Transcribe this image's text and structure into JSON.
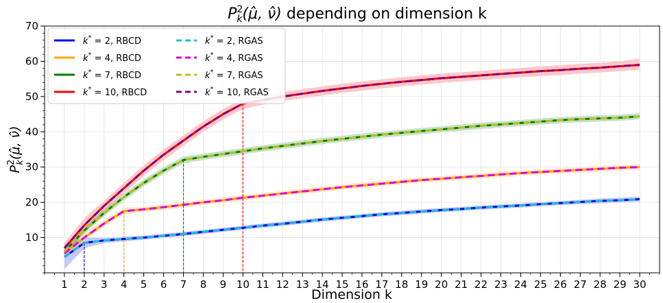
{
  "chart_data": {
    "type": "line",
    "title": "P_k^2(μ̂, ν̂) depending on dimension k",
    "title_parts": {
      "main": "P",
      "sub": "k",
      "sup": "2",
      "args": "(μ̂, ν̂)",
      "rest": " depending on dimension k"
    },
    "xlabel": "Dimension k",
    "ylabel": "P_k^2(μ̂, ν̂)",
    "ylabel_parts": {
      "main": "P",
      "sub": "k",
      "sup": "2",
      "args": "(μ̂, ν̂)"
    },
    "xlim": [
      0,
      31
    ],
    "ylim": [
      0,
      70
    ],
    "x_ticks": [
      1,
      2,
      3,
      4,
      5,
      6,
      7,
      8,
      9,
      10,
      11,
      12,
      13,
      14,
      15,
      16,
      17,
      18,
      19,
      20,
      21,
      22,
      23,
      24,
      25,
      26,
      27,
      28,
      29,
      30
    ],
    "y_ticks": [
      10,
      20,
      30,
      40,
      50,
      60,
      70
    ],
    "grid": true,
    "legend_position": "top-left",
    "x": [
      1,
      2,
      3,
      4,
      5,
      6,
      7,
      8,
      9,
      10,
      11,
      12,
      13,
      14,
      15,
      16,
      17,
      18,
      19,
      20,
      21,
      22,
      23,
      24,
      25,
      26,
      27,
      28,
      29,
      30
    ],
    "series": [
      {
        "name": "k* = 2, RBCD",
        "k_star": "2",
        "method": "RBCD",
        "color": "#0000ee",
        "dash": false,
        "values": [
          4.5,
          8.5,
          9.2,
          9.6,
          10.0,
          10.5,
          11.0,
          11.6,
          12.2,
          12.8,
          13.4,
          13.9,
          14.5,
          15.1,
          15.6,
          16.1,
          16.6,
          17.0,
          17.4,
          17.8,
          18.1,
          18.5,
          18.8,
          19.1,
          19.5,
          19.8,
          20.1,
          20.4,
          20.6,
          20.9
        ],
        "band": [
          [
            1.0,
            8.0
          ],
          [
            7.0,
            10.0
          ],
          [
            8.4,
            10.0
          ],
          [
            8.9,
            10.3
          ],
          [
            9.4,
            10.6
          ],
          [
            9.9,
            11.1
          ],
          [
            10.4,
            11.6
          ],
          [
            11.0,
            12.2
          ],
          [
            11.6,
            12.8
          ],
          [
            12.2,
            13.4
          ],
          [
            12.8,
            14.0
          ],
          [
            13.3,
            14.5
          ],
          [
            13.9,
            15.1
          ],
          [
            14.5,
            15.7
          ],
          [
            15.0,
            16.2
          ],
          [
            15.5,
            16.7
          ],
          [
            16.0,
            17.2
          ],
          [
            16.4,
            17.6
          ],
          [
            16.8,
            18.0
          ],
          [
            17.2,
            18.4
          ],
          [
            17.5,
            18.7
          ],
          [
            17.9,
            19.1
          ],
          [
            18.2,
            19.4
          ],
          [
            18.5,
            19.7
          ],
          [
            18.9,
            20.1
          ],
          [
            19.2,
            20.4
          ],
          [
            19.5,
            20.7
          ],
          [
            19.7,
            21.1
          ],
          [
            19.9,
            21.3
          ],
          [
            20.2,
            21.6
          ]
        ]
      },
      {
        "name": "k* = 4, RBCD",
        "k_star": "4",
        "method": "RBCD",
        "color": "#ffa500",
        "dash": false,
        "values": [
          5.5,
          10.0,
          14.0,
          17.5,
          18.0,
          18.6,
          19.3,
          20.0,
          20.6,
          21.3,
          21.9,
          22.5,
          23.1,
          23.7,
          24.3,
          24.8,
          25.3,
          25.8,
          26.3,
          26.7,
          27.1,
          27.5,
          27.9,
          28.3,
          28.6,
          28.9,
          29.2,
          29.5,
          29.8,
          30.0
        ],
        "band": [
          [
            4.5,
            6.5
          ],
          [
            9.0,
            11.2
          ],
          [
            13.0,
            15.0
          ],
          [
            16.5,
            18.5
          ],
          [
            17.2,
            18.8
          ],
          [
            17.8,
            19.4
          ],
          [
            18.5,
            20.1
          ],
          [
            19.2,
            20.8
          ],
          [
            19.8,
            21.4
          ],
          [
            20.5,
            22.1
          ],
          [
            21.1,
            22.7
          ],
          [
            21.7,
            23.3
          ],
          [
            22.3,
            23.9
          ],
          [
            22.9,
            24.5
          ],
          [
            23.5,
            25.1
          ],
          [
            24.0,
            25.6
          ],
          [
            24.5,
            26.1
          ],
          [
            25.0,
            26.6
          ],
          [
            25.5,
            27.1
          ],
          [
            25.9,
            27.5
          ],
          [
            26.3,
            27.9
          ],
          [
            26.7,
            28.3
          ],
          [
            27.1,
            28.7
          ],
          [
            27.5,
            29.1
          ],
          [
            27.8,
            29.4
          ],
          [
            28.1,
            29.7
          ],
          [
            28.4,
            30.0
          ],
          [
            28.7,
            30.3
          ],
          [
            29.0,
            30.6
          ],
          [
            29.2,
            30.8
          ]
        ]
      },
      {
        "name": "k* = 7, RBCD",
        "k_star": "7",
        "method": "RBCD",
        "color": "#008000",
        "dash": false,
        "values": [
          6.0,
          12.0,
          17.0,
          21.5,
          25.5,
          29.0,
          32.0,
          32.9,
          33.7,
          34.5,
          35.3,
          36.0,
          36.7,
          37.4,
          38.0,
          38.6,
          39.2,
          39.7,
          40.2,
          40.7,
          41.2,
          41.7,
          42.1,
          42.5,
          42.9,
          43.3,
          43.6,
          43.8,
          44.0,
          44.4
        ],
        "band": [
          [
            5.0,
            7.0
          ],
          [
            11.0,
            13.0
          ],
          [
            16.0,
            18.0
          ],
          [
            20.5,
            22.5
          ],
          [
            24.5,
            26.5
          ],
          [
            28.0,
            30.0
          ],
          [
            31.0,
            33.0
          ],
          [
            32.0,
            33.8
          ],
          [
            32.8,
            34.6
          ],
          [
            33.6,
            35.4
          ],
          [
            34.4,
            36.2
          ],
          [
            35.1,
            36.9
          ],
          [
            35.8,
            37.6
          ],
          [
            36.5,
            38.3
          ],
          [
            37.1,
            38.9
          ],
          [
            37.7,
            39.5
          ],
          [
            38.3,
            40.1
          ],
          [
            38.8,
            40.6
          ],
          [
            39.3,
            41.1
          ],
          [
            39.8,
            41.6
          ],
          [
            40.3,
            42.1
          ],
          [
            40.8,
            42.6
          ],
          [
            41.2,
            43.0
          ],
          [
            41.6,
            43.4
          ],
          [
            42.0,
            43.8
          ],
          [
            42.4,
            44.2
          ],
          [
            42.7,
            44.5
          ],
          [
            42.9,
            44.7
          ],
          [
            43.1,
            44.9
          ],
          [
            43.5,
            45.3
          ]
        ]
      },
      {
        "name": "k* = 10, RBCD",
        "k_star": "10",
        "method": "RBCD",
        "color": "#ff0000",
        "dash": false,
        "values": [
          7.0,
          13.5,
          19.0,
          24.0,
          29.0,
          33.5,
          37.5,
          41.5,
          45.0,
          48.0,
          49.0,
          50.0,
          50.8,
          51.6,
          52.3,
          53.0,
          53.6,
          54.2,
          54.7,
          55.2,
          55.6,
          56.0,
          56.4,
          56.8,
          57.2,
          57.5,
          57.9,
          58.2,
          58.6,
          59.0
        ],
        "band": [
          [
            5.5,
            8.5
          ],
          [
            12.0,
            15.5
          ],
          [
            17.5,
            20.5
          ],
          [
            22.5,
            25.5
          ],
          [
            27.5,
            30.5
          ],
          [
            32.0,
            35.0
          ],
          [
            36.0,
            39.0
          ],
          [
            40.0,
            43.0
          ],
          [
            43.5,
            46.5
          ],
          [
            46.5,
            49.5
          ],
          [
            47.7,
            50.3
          ],
          [
            48.7,
            51.3
          ],
          [
            49.5,
            52.1
          ],
          [
            50.3,
            52.9
          ],
          [
            51.0,
            53.6
          ],
          [
            51.7,
            54.3
          ],
          [
            52.3,
            54.9
          ],
          [
            52.9,
            55.5
          ],
          [
            53.4,
            56.0
          ],
          [
            53.9,
            56.5
          ],
          [
            54.3,
            56.9
          ],
          [
            54.7,
            57.3
          ],
          [
            55.1,
            57.7
          ],
          [
            55.5,
            58.1
          ],
          [
            55.8,
            58.6
          ],
          [
            56.1,
            58.9
          ],
          [
            56.5,
            59.3
          ],
          [
            56.8,
            59.6
          ],
          [
            57.2,
            60.0
          ],
          [
            57.6,
            60.8
          ]
        ]
      },
      {
        "name": "k* = 2, RGAS",
        "k_star": "2",
        "method": "RGAS",
        "color": "#17becf",
        "dash": true,
        "values": [
          4.5,
          8.5,
          9.2,
          9.6,
          10.0,
          10.5,
          11.0,
          11.6,
          12.2,
          12.8,
          13.4,
          13.9,
          14.5,
          15.1,
          15.6,
          16.1,
          16.6,
          17.0,
          17.4,
          17.8,
          18.1,
          18.5,
          18.8,
          19.1,
          19.5,
          19.8,
          20.1,
          20.4,
          20.6,
          20.9
        ]
      },
      {
        "name": "k* = 4, RGAS",
        "k_star": "4",
        "method": "RGAS",
        "color": "#dd00dd",
        "dash": true,
        "values": [
          5.5,
          10.0,
          14.0,
          17.5,
          18.0,
          18.6,
          19.3,
          20.0,
          20.6,
          21.3,
          21.9,
          22.5,
          23.1,
          23.7,
          24.3,
          24.8,
          25.3,
          25.8,
          26.3,
          26.7,
          27.1,
          27.5,
          27.9,
          28.3,
          28.6,
          28.9,
          29.2,
          29.5,
          29.8,
          30.0
        ]
      },
      {
        "name": "k* = 7, RGAS",
        "k_star": "7",
        "method": "RGAS",
        "color": "#bcbd22",
        "dash": true,
        "values": [
          6.0,
          12.0,
          17.0,
          21.5,
          25.5,
          29.0,
          32.0,
          32.9,
          33.7,
          34.5,
          35.3,
          36.0,
          36.7,
          37.4,
          38.0,
          38.6,
          39.2,
          39.7,
          40.2,
          40.7,
          41.2,
          41.7,
          42.1,
          42.5,
          42.9,
          43.3,
          43.6,
          43.8,
          44.0,
          44.4
        ]
      },
      {
        "name": "k* = 10, RGAS",
        "k_star": "10",
        "method": "RGAS",
        "color": "#800080",
        "dash": true,
        "values": [
          7.0,
          13.5,
          19.0,
          24.0,
          29.0,
          33.5,
          37.5,
          41.5,
          45.0,
          48.0,
          49.0,
          50.0,
          50.8,
          51.6,
          52.3,
          53.0,
          53.6,
          54.2,
          54.7,
          55.2,
          55.6,
          56.0,
          56.4,
          56.8,
          57.2,
          57.5,
          57.9,
          58.2,
          58.6,
          59.0
        ]
      }
    ],
    "vlines": [
      {
        "x": 2,
        "y": 8.5,
        "color": "#0000ee"
      },
      {
        "x": 4,
        "y": 17.5,
        "color": "#ffa500"
      },
      {
        "x": 7,
        "y": 32.0,
        "color": "#008000"
      },
      {
        "x": 10,
        "y": 48.0,
        "color": "#ff0000"
      }
    ]
  }
}
